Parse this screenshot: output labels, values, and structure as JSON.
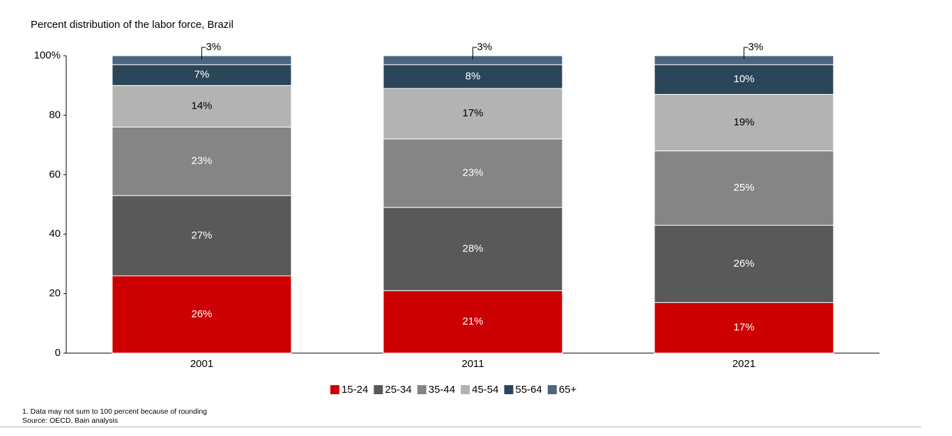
{
  "chart_data": {
    "type": "stacked-bar",
    "title": "Percent distribution of the labor force, Brazil",
    "categories": [
      "2001",
      "2011",
      "2021"
    ],
    "series": [
      {
        "name": "15-24",
        "color": "#cc0000",
        "values": [
          26,
          21,
          17
        ],
        "value_labels": [
          "26%",
          "21%",
          "17%"
        ]
      },
      {
        "name": "25-34",
        "color": "#595959",
        "values": [
          27,
          28,
          26
        ],
        "value_labels": [
          "27%",
          "28%",
          "26%"
        ]
      },
      {
        "name": "35-44",
        "color": "#858585",
        "values": [
          23,
          23,
          25
        ],
        "value_labels": [
          "23%",
          "23%",
          "25%"
        ]
      },
      {
        "name": "45-54",
        "color": "#b3b3b3",
        "values": [
          14,
          17,
          19
        ],
        "value_labels": [
          "14%",
          "17%",
          "19%"
        ]
      },
      {
        "name": "55-64",
        "color": "#2c4659",
        "values": [
          7,
          8,
          10
        ],
        "value_labels": [
          "7%",
          "8%",
          "10%"
        ]
      },
      {
        "name": "65+",
        "color": "#4b6680",
        "values": [
          3,
          3,
          3
        ],
        "value_labels": [
          "3%",
          "3%",
          "3%"
        ]
      }
    ],
    "ylim": [
      0,
      100
    ],
    "yticks": [
      0,
      20,
      40,
      60,
      80,
      {
        "value": 100,
        "label": "100%"
      }
    ],
    "notes": [
      "1. Data may not sum to 100 percent because of rounding",
      "Source: OECD, Bain analysis"
    ]
  }
}
